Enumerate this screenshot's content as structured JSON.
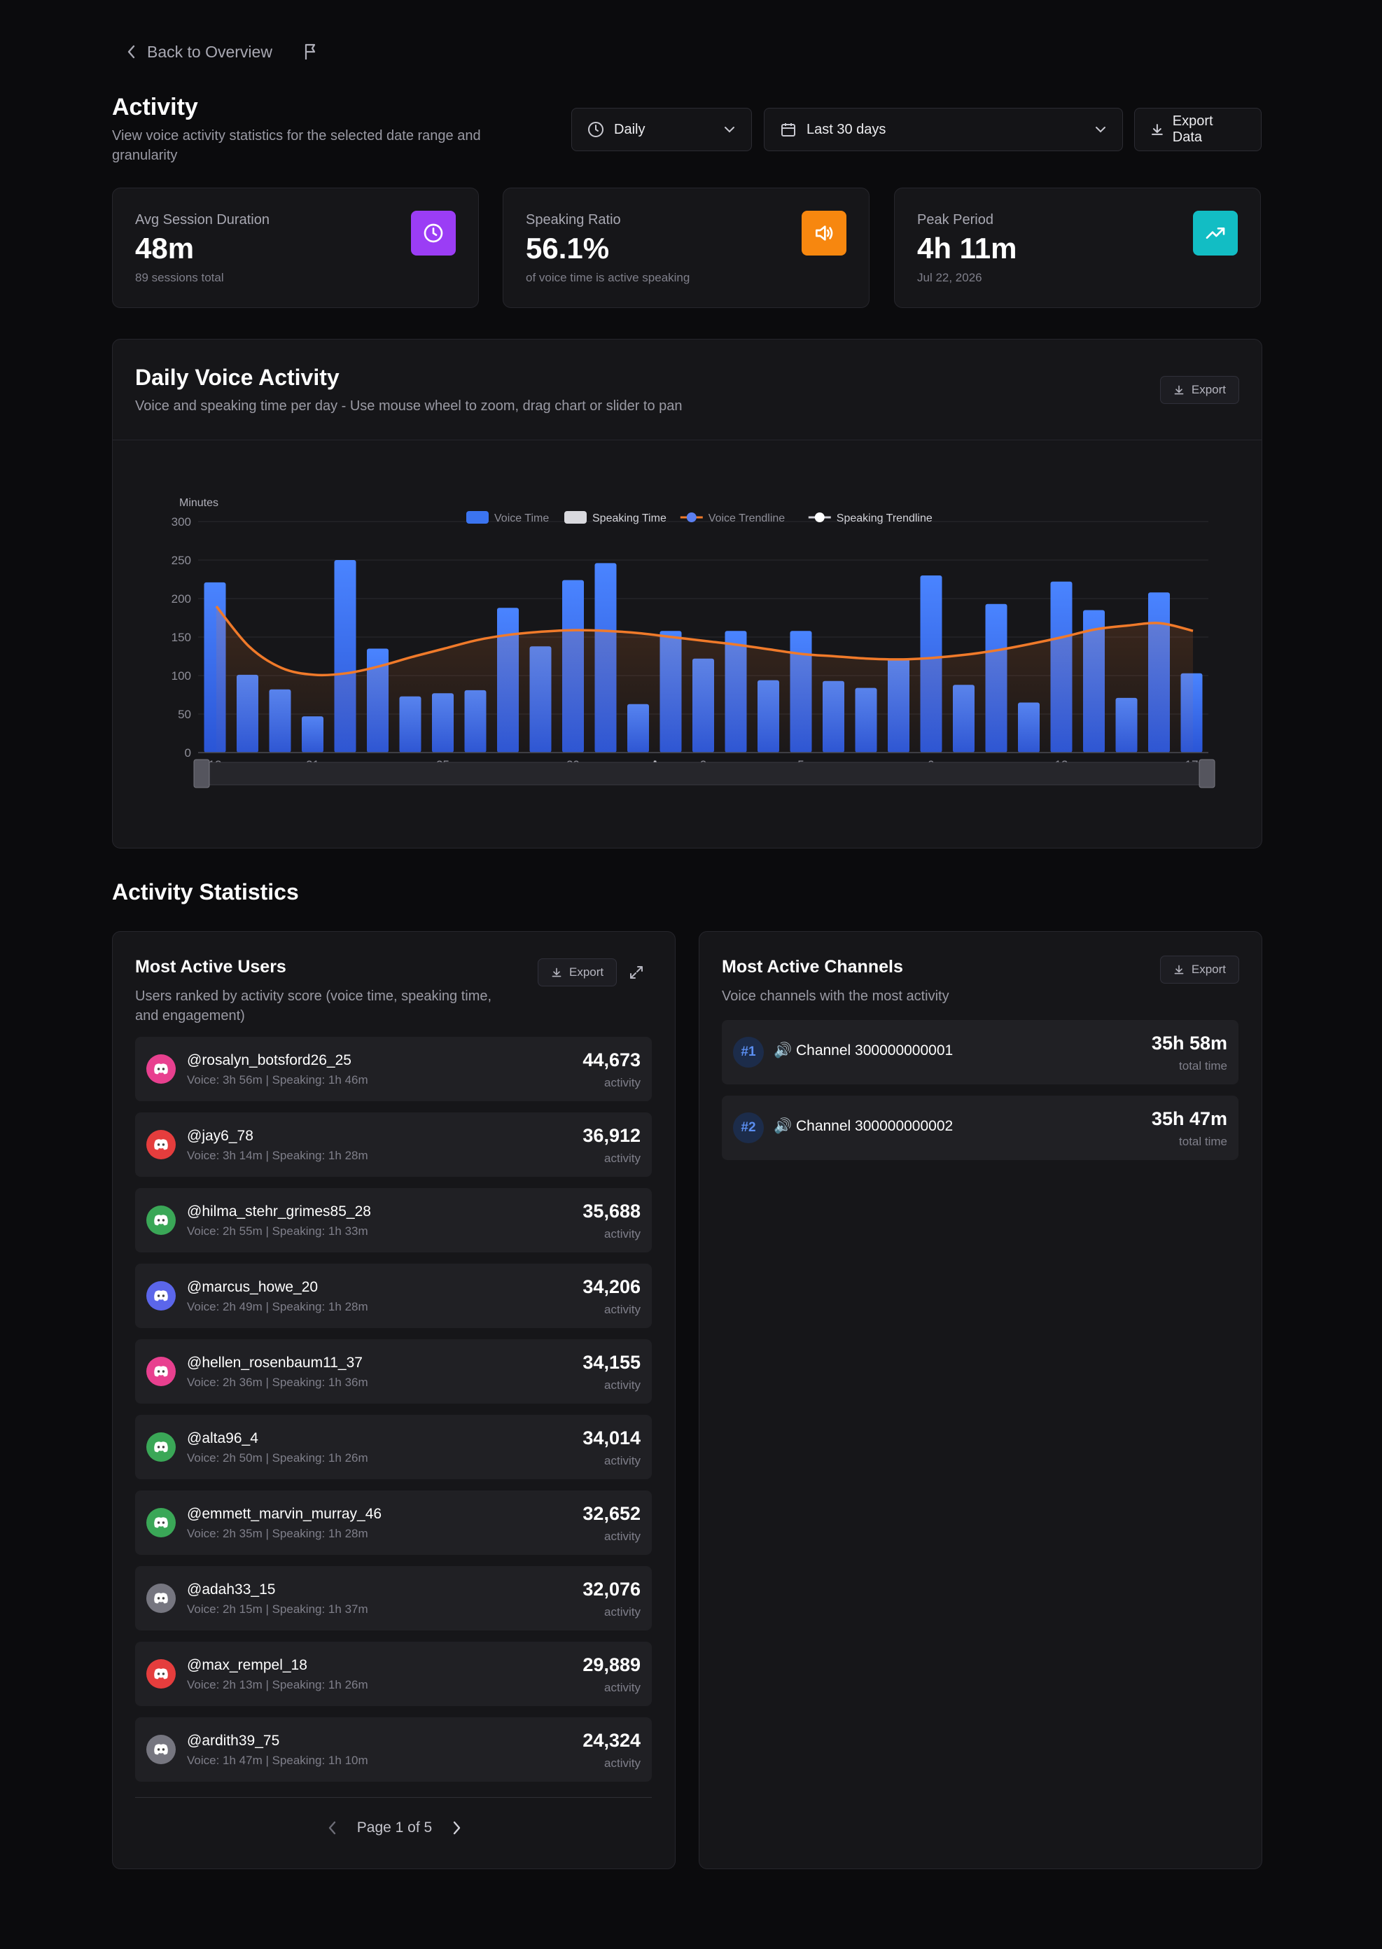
{
  "nav": {
    "back_label": "Back to Overview"
  },
  "header": {
    "title": "Activity",
    "subtitle": "View voice activity statistics for the selected date range and granularity",
    "granularity": "Daily",
    "range": "Last 30 days",
    "export_label": "Export Data"
  },
  "stats": [
    {
      "label": "Avg Session Duration",
      "value": "48m",
      "foot": "89 sessions total",
      "icon": "clock-icon",
      "color": "#9b3df5"
    },
    {
      "label": "Speaking Ratio",
      "value": "56.1%",
      "foot": "of voice time is active speaking",
      "icon": "speaker-icon",
      "color": "#f7870f"
    },
    {
      "label": "Peak Period",
      "value": "4h 11m",
      "foot": "Jul 22, 2026",
      "icon": "trending-up-icon",
      "color": "#12bdc4"
    }
  ],
  "chart_card": {
    "title": "Daily Voice Activity",
    "subtitle": "Voice and speaking time per day - Use mouse wheel to zoom, drag chart or slider to pan",
    "export_label": "Export"
  },
  "chart_data": {
    "type": "bar",
    "ylabel": "Minutes",
    "ylim": [
      0,
      300
    ],
    "yticks": [
      "0",
      "50",
      "100",
      "150",
      "200",
      "250",
      "300"
    ],
    "legend": [
      "Voice Time",
      "Speaking Time",
      "Voice Trendline",
      "Speaking Trendline"
    ],
    "legend_position": "top-center",
    "grid": true,
    "x_tick_labels": [
      {
        "index": 0,
        "label": "18"
      },
      {
        "index": 3,
        "label": "21"
      },
      {
        "index": 7,
        "label": "25"
      },
      {
        "index": 11,
        "label": "29"
      },
      {
        "index": 14,
        "label": "Aug"
      },
      {
        "index": 15,
        "label": "2"
      },
      {
        "index": 18,
        "label": "5"
      },
      {
        "index": 22,
        "label": "9"
      },
      {
        "index": 26,
        "label": "13"
      },
      {
        "index": 30,
        "label": "17"
      }
    ],
    "series": [
      {
        "name": "Voice Time",
        "color": "#3b74f0",
        "values": [
          221,
          101,
          82,
          47,
          250,
          135,
          73,
          77,
          81,
          188,
          138,
          224,
          246,
          63,
          158,
          122,
          158,
          94,
          158,
          93,
          84,
          122,
          230,
          88,
          193,
          65,
          222,
          185,
          71,
          208,
          103
        ]
      },
      {
        "name": "Voice Trendline",
        "color": "#f07a2a",
        "values": [
          190,
          138,
          110,
          101,
          103,
          112,
          124,
          135,
          146,
          153,
          157,
          159,
          158,
          155,
          150,
          145,
          140,
          134,
          128,
          125,
          122,
          121,
          123,
          127,
          133,
          141,
          150,
          160,
          165,
          168,
          158
        ]
      }
    ]
  },
  "section_title": "Activity Statistics",
  "users_panel": {
    "title": "Most Active Users",
    "subtitle": "Users ranked by activity score (voice time, speaking time, and engagement)",
    "export_label": "Export",
    "activity_label": "activity",
    "users": [
      {
        "name": "@rosalyn_botsford26_25",
        "detail": "Voice: 3h 56m | Speaking: 1h 46m",
        "score": "44,673",
        "color": "#e8408f"
      },
      {
        "name": "@jay6_78",
        "detail": "Voice: 3h 14m | Speaking: 1h 28m",
        "score": "36,912",
        "color": "#e53d3d"
      },
      {
        "name": "@hilma_stehr_grimes85_28",
        "detail": "Voice: 2h 55m | Speaking: 1h 33m",
        "score": "35,688",
        "color": "#3aa757"
      },
      {
        "name": "@marcus_howe_20",
        "detail": "Voice: 2h 49m | Speaking: 1h 28m",
        "score": "34,206",
        "color": "#5b66ea"
      },
      {
        "name": "@hellen_rosenbaum11_37",
        "detail": "Voice: 2h 36m | Speaking: 1h 36m",
        "score": "34,155",
        "color": "#e8408f"
      },
      {
        "name": "@alta96_4",
        "detail": "Voice: 2h 50m | Speaking: 1h 26m",
        "score": "34,014",
        "color": "#3aa757"
      },
      {
        "name": "@emmett_marvin_murray_46",
        "detail": "Voice: 2h 35m | Speaking: 1h 28m",
        "score": "32,652",
        "color": "#3aa757"
      },
      {
        "name": "@adah33_15",
        "detail": "Voice: 2h 15m | Speaking: 1h 37m",
        "score": "32,076",
        "color": "#767680"
      },
      {
        "name": "@max_rempel_18",
        "detail": "Voice: 2h 13m | Speaking: 1h 26m",
        "score": "29,889",
        "color": "#e53d3d"
      },
      {
        "name": "@ardith39_75",
        "detail": "Voice: 1h 47m | Speaking: 1h 10m",
        "score": "24,324",
        "color": "#767680"
      }
    ],
    "pager": "Page 1 of 5"
  },
  "channels_panel": {
    "title": "Most Active Channels",
    "subtitle": "Voice channels with the most activity",
    "export_label": "Export",
    "time_label": "total time",
    "channels": [
      {
        "rank": "#1",
        "name": "🔊 Channel 300000000001",
        "time": "35h 58m"
      },
      {
        "rank": "#2",
        "name": "🔊 Channel 300000000002",
        "time": "35h 47m"
      }
    ]
  }
}
